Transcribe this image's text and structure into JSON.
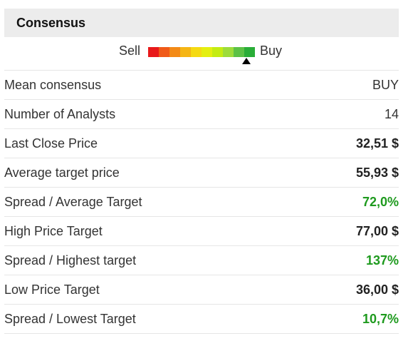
{
  "header": {
    "title": "Consensus"
  },
  "gauge": {
    "sell_label": "Sell",
    "buy_label": "Buy",
    "segments": [
      "#e8191a",
      "#f05a18",
      "#f38a16",
      "#f5b514",
      "#f5da12",
      "#e4ef10",
      "#c4ec12",
      "#9ddc3a",
      "#5cc145",
      "#2aad38"
    ],
    "marker_segment": 9,
    "icon": "triangle-up-icon"
  },
  "rows": [
    {
      "label": "Mean consensus",
      "value": "BUY",
      "style": "plain"
    },
    {
      "label": "Number of Analysts",
      "value": "14",
      "style": "plain"
    },
    {
      "label": "Last Close Price",
      "value": "32,51 $",
      "style": "bold"
    },
    {
      "label": "Average target price",
      "value": "55,93 $",
      "style": "bold"
    },
    {
      "label": "Spread / Average Target",
      "value": "72,0%",
      "style": "green"
    },
    {
      "label": "High Price Target",
      "value": "77,00 $",
      "style": "bold"
    },
    {
      "label": "Spread / Highest target",
      "value": "137%",
      "style": "green"
    },
    {
      "label": "Low Price Target",
      "value": "36,00 $",
      "style": "bold"
    },
    {
      "label": "Spread / Lowest Target",
      "value": "10,7%",
      "style": "green"
    }
  ],
  "colors": {
    "positive": "#1e9a1e",
    "header_bg": "#ececec"
  }
}
